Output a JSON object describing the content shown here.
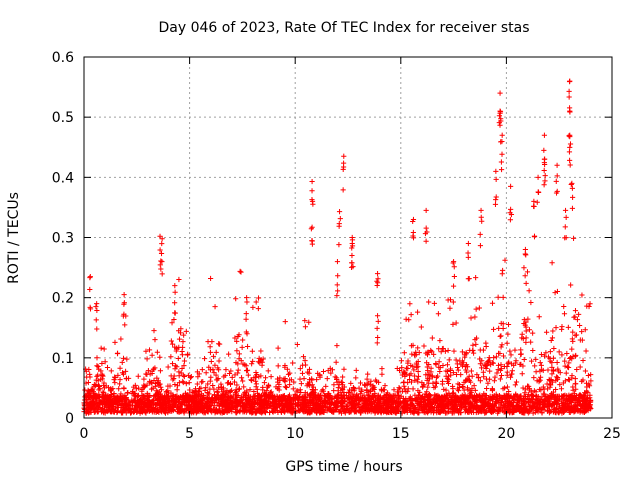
{
  "chart_data": {
    "type": "scatter",
    "title": "Day 046 of 2023, Rate Of TEC Index for receiver stas",
    "xlabel": "GPS time / hours",
    "ylabel": "ROTI / TECUs",
    "xlim": [
      0,
      25
    ],
    "ylim": [
      0,
      0.6
    ],
    "x_ticks": [
      0,
      5,
      10,
      15,
      20,
      25
    ],
    "x_tick_labels": [
      "0",
      "5",
      "10",
      "15",
      "20",
      "25"
    ],
    "y_ticks": [
      0,
      0.1,
      0.2,
      0.3,
      0.4,
      0.5,
      0.6
    ],
    "y_tick_labels": [
      "0",
      "0.1",
      "0.2",
      "0.3",
      "0.4",
      "0.5",
      "0.6"
    ],
    "grid": true,
    "marker": "+",
    "color": "#ff0000",
    "series": [
      {
        "name": "ROTI",
        "x_range": [
          0,
          24
        ],
        "typical_max": [
          0.07,
          0.2
        ],
        "highlights": [
          {
            "x": 0.3,
            "y": 0.235
          },
          {
            "x": 0.6,
            "y": 0.19
          },
          {
            "x": 1.9,
            "y": 0.205
          },
          {
            "x": 3.6,
            "y": 0.302
          },
          {
            "x": 3.7,
            "y": 0.298
          },
          {
            "x": 4.3,
            "y": 0.22
          },
          {
            "x": 7.7,
            "y": 0.2
          },
          {
            "x": 10.8,
            "y": 0.393
          },
          {
            "x": 10.8,
            "y": 0.317
          },
          {
            "x": 12.0,
            "y": 0.26
          },
          {
            "x": 12.1,
            "y": 0.343
          },
          {
            "x": 12.3,
            "y": 0.435
          },
          {
            "x": 12.7,
            "y": 0.3
          },
          {
            "x": 12.7,
            "y": 0.29
          },
          {
            "x": 13.9,
            "y": 0.24
          },
          {
            "x": 13.9,
            "y": 0.17
          },
          {
            "x": 15.6,
            "y": 0.33
          },
          {
            "x": 16.2,
            "y": 0.345
          },
          {
            "x": 17.5,
            "y": 0.26
          },
          {
            "x": 18.2,
            "y": 0.29
          },
          {
            "x": 18.8,
            "y": 0.345
          },
          {
            "x": 19.5,
            "y": 0.41
          },
          {
            "x": 19.7,
            "y": 0.54
          },
          {
            "x": 19.7,
            "y": 0.51
          },
          {
            "x": 19.8,
            "y": 0.47
          },
          {
            "x": 20.2,
            "y": 0.385
          },
          {
            "x": 20.9,
            "y": 0.28
          },
          {
            "x": 21.3,
            "y": 0.36
          },
          {
            "x": 21.5,
            "y": 0.4
          },
          {
            "x": 21.8,
            "y": 0.47
          },
          {
            "x": 21.8,
            "y": 0.43
          },
          {
            "x": 22.4,
            "y": 0.42
          },
          {
            "x": 22.8,
            "y": 0.345
          },
          {
            "x": 23.0,
            "y": 0.56
          },
          {
            "x": 23.0,
            "y": 0.51
          },
          {
            "x": 23.0,
            "y": 0.47
          },
          {
            "x": 23.1,
            "y": 0.39
          }
        ]
      }
    ]
  }
}
